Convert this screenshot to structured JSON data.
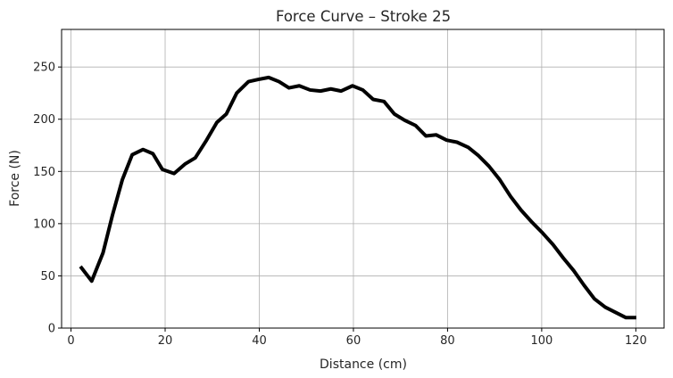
{
  "chart_data": {
    "type": "line",
    "title": "Force Curve – Stroke 25",
    "xlabel": "Distance (cm)",
    "ylabel": "Force (N)",
    "xlim": [
      -2,
      126
    ],
    "ylim": [
      0,
      286
    ],
    "xticks": [
      0,
      20,
      40,
      60,
      80,
      100,
      120
    ],
    "yticks": [
      0,
      50,
      100,
      150,
      200,
      250
    ],
    "grid": true,
    "legend": "none",
    "series": [
      {
        "color": "#000000",
        "x": [
          2,
          4.4,
          6.8,
          8.8,
          10.9,
          13,
          15.3,
          17.4,
          19.4,
          21.9,
          24.2,
          26.4,
          28.8,
          31,
          33,
          35.2,
          37.7,
          39.7,
          42,
          44.2,
          46.3,
          48.5,
          50.8,
          53,
          55.2,
          57.4,
          59.8,
          62,
          64.2,
          66.5,
          68.7,
          70.9,
          73.2,
          75.4,
          77.6,
          79.8,
          82,
          84.4,
          86.6,
          88.8,
          91.1,
          93.4,
          95.6,
          97.8,
          100.2,
          102.4,
          104.6,
          106.8,
          109,
          111.2,
          113.5,
          115.7,
          117.9,
          120.1
        ],
        "values": [
          59,
          45,
          72,
          108,
          142,
          166,
          171,
          167,
          152,
          148,
          157,
          163,
          180,
          197,
          205,
          225,
          236,
          238,
          240,
          236,
          230,
          232,
          228,
          227,
          229,
          227,
          232,
          228,
          219,
          217,
          205,
          199,
          194,
          184,
          185,
          180,
          178,
          173,
          165,
          155,
          142,
          126,
          113,
          102,
          91,
          80,
          67,
          55,
          41,
          28,
          20,
          15,
          10,
          10
        ]
      }
    ]
  }
}
